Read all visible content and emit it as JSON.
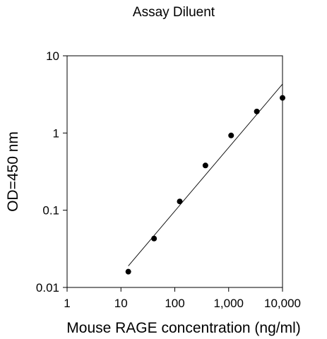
{
  "chart_data": {
    "type": "scatter",
    "title": "Assay Diluent",
    "xlabel": "Mouse RAGE concentration (ng/ml)",
    "ylabel": "OD=450 nm",
    "x_scale": "log",
    "y_scale": "log",
    "xlim": [
      1,
      10000
    ],
    "ylim": [
      0.01,
      10
    ],
    "x_ticks": [
      1,
      10,
      100,
      1000,
      10000
    ],
    "x_tick_labels": [
      "1",
      "10",
      "100",
      "1,000",
      "10,000"
    ],
    "y_ticks": [
      0.01,
      0.1,
      1,
      10
    ],
    "y_tick_labels": [
      "0.01",
      "0.1",
      "1",
      "10"
    ],
    "grid": false,
    "series": [
      {
        "x": [
          13.7,
          41.2,
          123.5,
          370.4,
          1111.1,
          3333.3,
          10000
        ],
        "y": [
          0.016,
          0.043,
          0.13,
          0.38,
          0.93,
          1.9,
          2.85
        ],
        "marker": "circle",
        "color": "#000000"
      }
    ],
    "fit_line": {
      "x": [
        13.7,
        10000
      ],
      "y": [
        0.019,
        4.3
      ],
      "color": "#000000"
    }
  }
}
